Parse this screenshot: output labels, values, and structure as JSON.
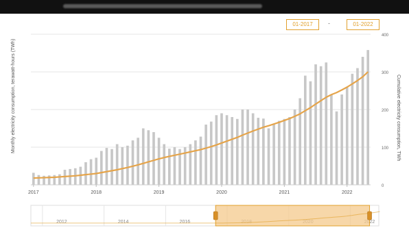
{
  "toolbar": {
    "range_start": "01-2017",
    "range_separator": "-",
    "range_end": "01-2022"
  },
  "chart_data": {
    "type": "bar",
    "ylabel": "Monthly electricity consumption, terawatt-hours (TWh)",
    "ylabel_right": "Cumulative electricity consumption, TWh",
    "ylim": [
      0,
      400
    ],
    "yticks_right": [
      0,
      100,
      200,
      300,
      400
    ],
    "x_tick_labels": [
      "2017",
      "2018",
      "2019",
      "2020",
      "2021",
      "2022"
    ],
    "grid": true,
    "series": [
      {
        "type": "bar",
        "values": [
          32,
          26,
          24,
          25,
          26,
          28,
          40,
          42,
          44,
          48,
          60,
          68,
          72,
          90,
          98,
          95,
          108,
          100,
          104,
          118,
          125,
          150,
          145,
          140,
          125,
          108,
          96,
          100,
          95,
          100,
          108,
          118,
          128,
          160,
          168,
          185,
          190,
          185,
          180,
          175,
          200,
          200,
          190,
          178,
          176,
          150,
          160,
          170,
          175,
          180,
          200,
          230,
          290,
          275,
          320,
          315,
          325,
          240,
          195,
          240,
          260,
          295,
          310,
          340,
          358
        ],
        "color": "#c7c7c7"
      },
      {
        "type": "line",
        "values": [
          18,
          18.5,
          19,
          19.5,
          20,
          21,
          22,
          23,
          24,
          25.5,
          27,
          28.5,
          30,
          32.5,
          35,
          37.5,
          40,
          43,
          46,
          49.5,
          53,
          57,
          61,
          65,
          69,
          72.5,
          75.5,
          78.5,
          81.5,
          84.5,
          87.5,
          90.5,
          93.5,
          97.5,
          101.5,
          106,
          111,
          116,
          121,
          126,
          132,
          137.5,
          143,
          148,
          153,
          157,
          161.5,
          166,
          171,
          176,
          182,
          188.5,
          197,
          205,
          214.5,
          223.5,
          232.5,
          239.5,
          245,
          252,
          259.5,
          268,
          277,
          287,
          300
        ],
        "color": "#e5a44a"
      }
    ],
    "navigator": {
      "x_tick_labels": [
        "2012",
        "2014",
        "2016",
        "2018",
        "2020",
        "2022"
      ],
      "selected_range": [
        "2017-01",
        "2022-01"
      ]
    }
  }
}
